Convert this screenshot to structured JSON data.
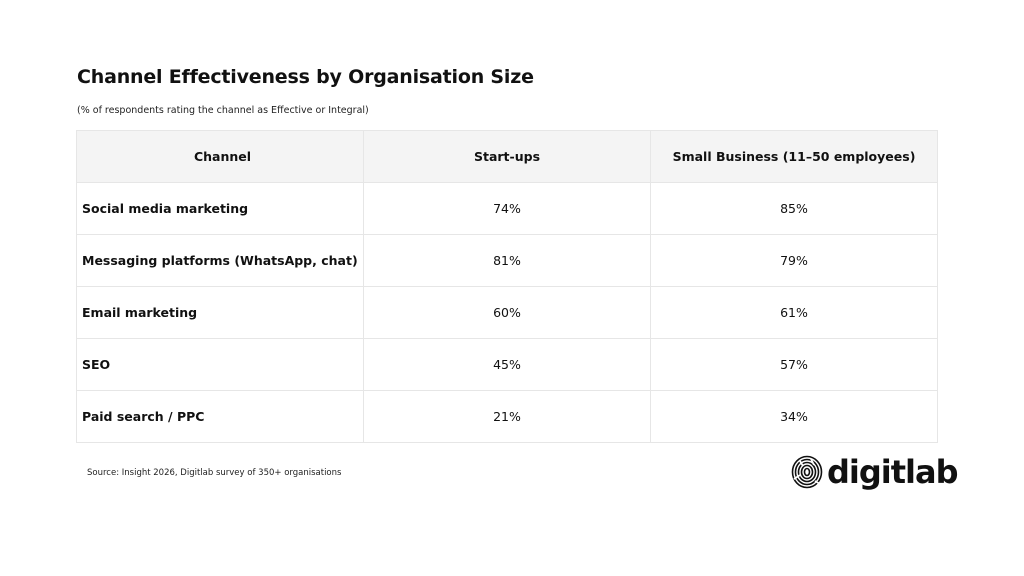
{
  "header": {
    "title": "Channel Effectiveness by Organisation Size",
    "subtitle": "(% of respondents rating the channel as Effective or Integral)"
  },
  "table": {
    "columns": [
      "Channel",
      "Start-ups",
      "Small Business (11–50 employees)"
    ],
    "rows": [
      {
        "channel": "Social media marketing",
        "startups": "74%",
        "small_business": "85%"
      },
      {
        "channel": "Messaging platforms (WhatsApp, chat)",
        "startups": "81%",
        "small_business": "79%"
      },
      {
        "channel": "Email marketing",
        "startups": "60%",
        "small_business": "61%"
      },
      {
        "channel": "SEO",
        "startups": "45%",
        "small_business": "57%"
      },
      {
        "channel": "Paid search / PPC",
        "startups": "21%",
        "small_business": "34%"
      }
    ]
  },
  "footer": {
    "source": "Source: Insight 2026, Digitlab survey of 350+ organisations",
    "logo_text": "digitlab",
    "logo_icon": "fingerprint-icon"
  },
  "colors": {
    "text": "#111111",
    "header_bg": "#f4f4f4",
    "border": "#e6e6e6"
  }
}
